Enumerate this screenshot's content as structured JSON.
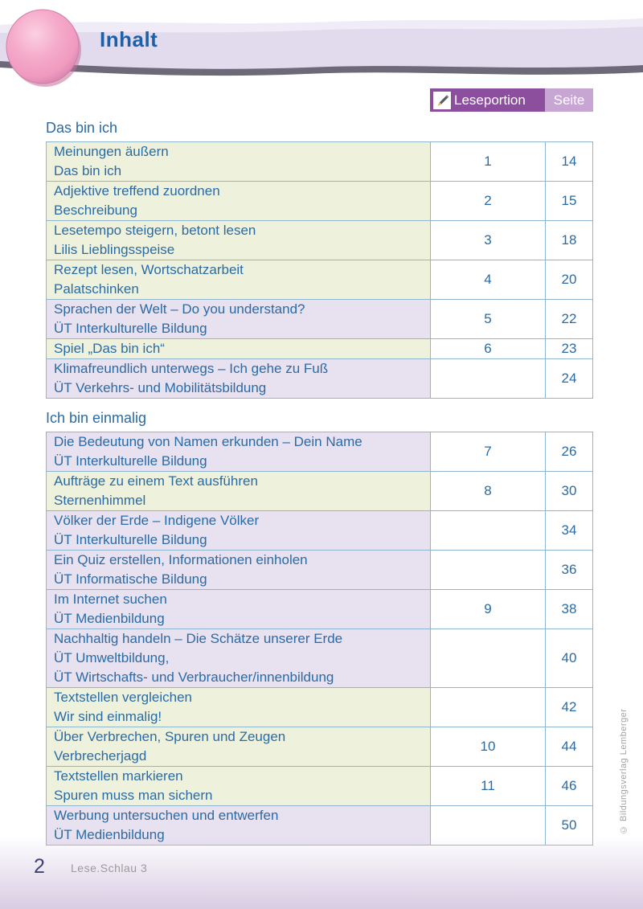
{
  "header": {
    "title": "Inhalt"
  },
  "table_header": {
    "leseportion_label": "Leseportion",
    "seite_label": "Seite",
    "icon": "pencil-icon"
  },
  "sections": [
    {
      "heading": "Das bin ich",
      "rows": [
        {
          "lines": [
            "Meinungen äußern",
            "Das bin ich"
          ],
          "leseportion": "1",
          "seite": "14",
          "bg": "green"
        },
        {
          "lines": [
            "Adjektive treffend zuordnen",
            "Beschreibung"
          ],
          "leseportion": "2",
          "seite": "15",
          "bg": "green"
        },
        {
          "lines": [
            "Lesetempo steigern, betont lesen",
            "Lilis Lieblingsspeise"
          ],
          "leseportion": "3",
          "seite": "18",
          "bg": "green"
        },
        {
          "lines": [
            "Rezept lesen, Wortschatzarbeit",
            "Palatschinken"
          ],
          "leseportion": "4",
          "seite": "20",
          "bg": "green"
        },
        {
          "lines": [
            "Sprachen der Welt – Do you understand?",
            "ÜT Interkulturelle Bildung"
          ],
          "leseportion": "5",
          "seite": "22",
          "bg": "purple"
        },
        {
          "lines": [
            "Spiel „Das bin ich“"
          ],
          "leseportion": "6",
          "seite": "23",
          "bg": "green"
        },
        {
          "lines": [
            "Klimafreundlich unterwegs – Ich gehe zu Fuß",
            "ÜT Verkehrs- und Mobilitätsbildung"
          ],
          "leseportion": "",
          "seite": "24",
          "bg": "purple"
        }
      ]
    },
    {
      "heading": "Ich bin einmalig",
      "rows": [
        {
          "lines": [
            "Die Bedeutung von Namen erkunden – Dein Name",
            "ÜT Interkulturelle Bildung"
          ],
          "leseportion": "7",
          "seite": "26",
          "bg": "purple"
        },
        {
          "lines": [
            "Aufträge zu einem Text ausführen",
            "Sternenhimmel"
          ],
          "leseportion": "8",
          "seite": "30",
          "bg": "green"
        },
        {
          "lines": [
            "Völker der Erde – Indigene Völker",
            "ÜT Interkulturelle Bildung"
          ],
          "leseportion": "",
          "seite": "34",
          "bg": "purple"
        },
        {
          "lines": [
            "Ein Quiz erstellen, Informationen einholen",
            "ÜT Informatische Bildung"
          ],
          "leseportion": "",
          "seite": "36",
          "bg": "purple"
        },
        {
          "lines": [
            "Im Internet suchen",
            "ÜT Medienbildung"
          ],
          "leseportion": "9",
          "seite": "38",
          "bg": "purple"
        },
        {
          "lines": [
            "Nachhaltig handeln – Die Schätze unserer Erde",
            "ÜT Umweltbildung,",
            "ÜT Wirtschafts- und Verbraucher/innenbildung"
          ],
          "leseportion": "",
          "seite": "40",
          "bg": "purple"
        },
        {
          "lines": [
            "Textstellen vergleichen",
            "Wir sind einmalig!"
          ],
          "leseportion": "",
          "seite": "42",
          "bg": "green"
        },
        {
          "lines": [
            "Über Verbrechen, Spuren und Zeugen",
            "Verbrecherjagd"
          ],
          "leseportion": "10",
          "seite": "44",
          "bg": "green"
        },
        {
          "lines": [
            "Textstellen markieren",
            "Spuren muss man sichern"
          ],
          "leseportion": "11",
          "seite": "46",
          "bg": "green"
        },
        {
          "lines": [
            "Werbung untersuchen und entwerfen",
            "ÜT Medienbildung"
          ],
          "leseportion": "",
          "seite": "50",
          "bg": "purple"
        }
      ]
    }
  ],
  "footer": {
    "page_number": "2",
    "book_title": "Lese.Schlau 3"
  },
  "side": {
    "copyright": "© Bildungsverlag Lemberger"
  },
  "colors": {
    "accent_purple": "#8b4f9d",
    "light_purple": "#c7a6d4",
    "row_green": "#eef2dd",
    "row_purple": "#e8e1f0",
    "border_blue": "#8fb6ce",
    "text_blue": "#2a6ba5",
    "ribbon": "#e2dbee",
    "blob_pink": "#f3a6c6"
  }
}
